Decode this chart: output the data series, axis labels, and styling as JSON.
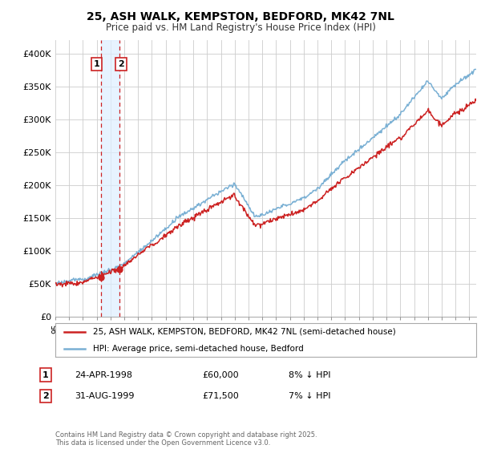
{
  "title": "25, ASH WALK, KEMPSTON, BEDFORD, MK42 7NL",
  "subtitle": "Price paid vs. HM Land Registry's House Price Index (HPI)",
  "ylim": [
    0,
    420000
  ],
  "yticks": [
    0,
    50000,
    100000,
    150000,
    200000,
    250000,
    300000,
    350000,
    400000
  ],
  "ytick_labels": [
    "£0",
    "£50K",
    "£100K",
    "£150K",
    "£200K",
    "£250K",
    "£300K",
    "£350K",
    "£400K"
  ],
  "background_color": "#ffffff",
  "plot_bg_color": "#ffffff",
  "grid_color": "#cccccc",
  "sale1_date": 1998.31,
  "sale1_price": 60000,
  "sale1_label": "1",
  "sale2_date": 1999.66,
  "sale2_price": 71500,
  "sale2_label": "2",
  "legend_line1": "25, ASH WALK, KEMPSTON, BEDFORD, MK42 7NL (semi-detached house)",
  "legend_line2": "HPI: Average price, semi-detached house, Bedford",
  "table_row1": [
    "1",
    "24-APR-1998",
    "£60,000",
    "8% ↓ HPI"
  ],
  "table_row2": [
    "2",
    "31-AUG-1999",
    "£71,500",
    "7% ↓ HPI"
  ],
  "footnote": "Contains HM Land Registry data © Crown copyright and database right 2025.\nThis data is licensed under the Open Government Licence v3.0.",
  "line_color_red": "#cc2222",
  "line_color_blue": "#7ab0d4",
  "vline_color": "#cc2222",
  "box_color1": "#cc2222",
  "box_color2": "#cc2222",
  "shade_color": "#ddeeff",
  "xlim_start": 1995,
  "xlim_end": 2025.5
}
